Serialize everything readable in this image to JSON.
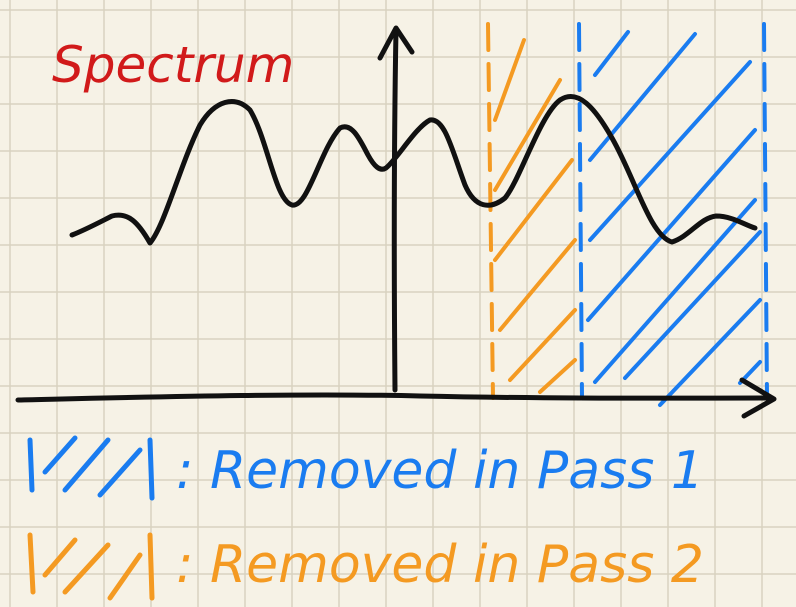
{
  "title": "Spectrum",
  "legend": [
    {
      "label": ": Removed in Pass 1",
      "color": "#1a7cf0"
    },
    {
      "label": ": Removed in Pass 2",
      "color": "#f49a22"
    }
  ],
  "colors": {
    "paper": "#f6f2e6",
    "grid": "#d8d2c0",
    "ink": "#111111",
    "title": "#d11a1a",
    "pass1": "#1a7cf0",
    "pass2": "#f49a22"
  }
}
